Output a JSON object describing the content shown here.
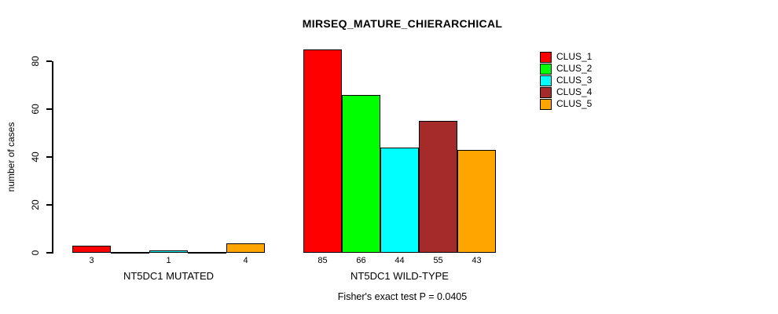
{
  "chart_data": {
    "type": "bar",
    "title": "MIRSEQ_MATURE_CHIERARCHICAL",
    "ylabel": "number of cases",
    "xlabel": "",
    "yticks": [
      0,
      20,
      40,
      60,
      80
    ],
    "ylim": [
      0,
      87
    ],
    "grid": false,
    "legend_position": "top-right",
    "legend": [
      {
        "label": "CLUS_1",
        "color": "#FF0000"
      },
      {
        "label": "CLUS_2",
        "color": "#00FF00"
      },
      {
        "label": "CLUS_3",
        "color": "#00FFFF"
      },
      {
        "label": "CLUS_4",
        "color": "#A52A2A"
      },
      {
        "label": "CLUS_5",
        "color": "#FFA500"
      }
    ],
    "groups": [
      {
        "label": "NT5DC1 MUTATED",
        "values": [
          3,
          0,
          1,
          0,
          4
        ]
      },
      {
        "label": "NT5DC1 WILD-TYPE",
        "values": [
          85,
          66,
          44,
          55,
          43
        ]
      }
    ],
    "bar_value_labels": {
      "show": true,
      "hide_zero": true
    },
    "footer": "Fisher's exact test P = 0.0405"
  }
}
